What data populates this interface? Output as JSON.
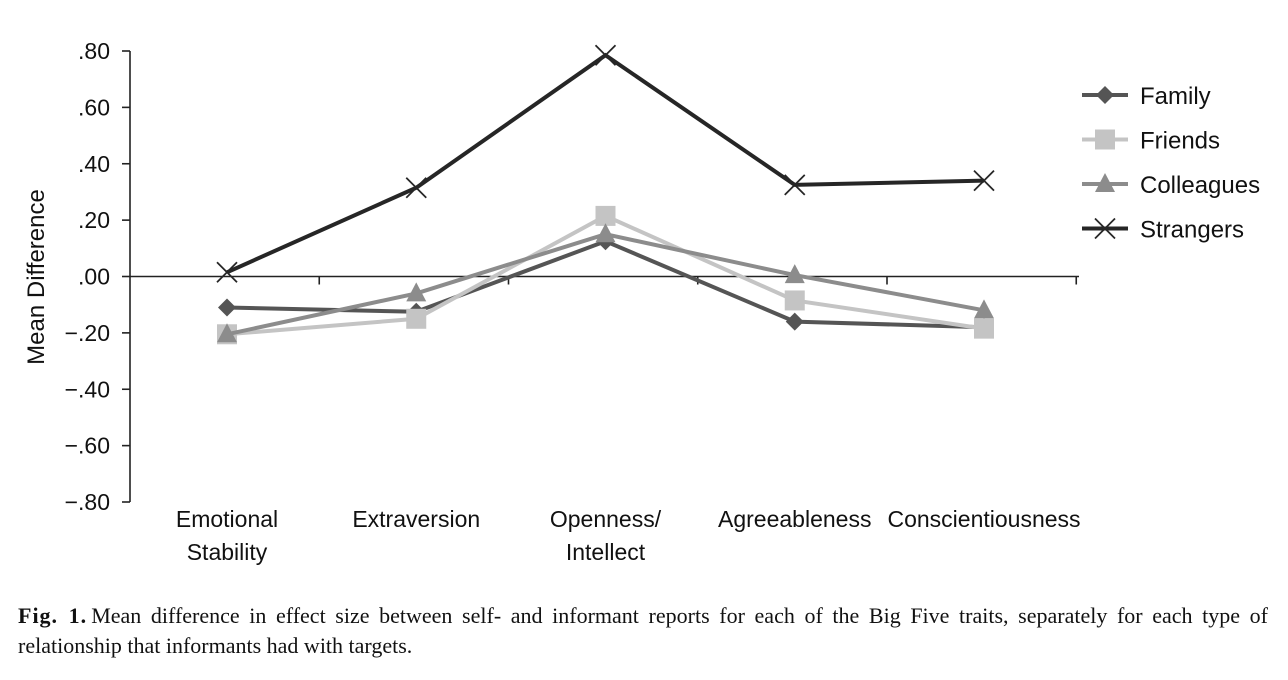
{
  "chart_data": {
    "type": "line",
    "ylabel": "Mean Difference",
    "ylim": [
      -0.8,
      0.8
    ],
    "yticks": [
      ".80",
      ".60",
      ".40",
      ".20",
      ".00",
      "−.20",
      "−.40",
      "−.60",
      "−.80"
    ],
    "yticks_values": [
      0.8,
      0.6,
      0.4,
      0.2,
      0.0,
      -0.2,
      -0.4,
      -0.6,
      -0.8
    ],
    "categories": [
      [
        "Emotional",
        "Stability"
      ],
      [
        "Extraversion"
      ],
      [
        "Openness/",
        "Intellect"
      ],
      [
        "Agreeableness"
      ],
      [
        "Conscientiousness"
      ]
    ],
    "legend_position": "right",
    "series": [
      {
        "name": "Family",
        "marker": "diamond",
        "color": "#555555",
        "values": [
          -0.11,
          -0.125,
          0.125,
          -0.16,
          -0.18
        ]
      },
      {
        "name": "Friends",
        "marker": "square",
        "color": "#c4c4c4",
        "values": [
          -0.205,
          -0.15,
          0.215,
          -0.085,
          -0.185
        ]
      },
      {
        "name": "Colleagues",
        "marker": "triangle",
        "color": "#8c8c8c",
        "values": [
          -0.205,
          -0.06,
          0.15,
          0.005,
          -0.12
        ]
      },
      {
        "name": "Strangers",
        "marker": "x",
        "color": "#262626",
        "values": [
          0.015,
          0.315,
          0.785,
          0.325,
          0.34
        ]
      }
    ]
  },
  "caption": {
    "label": "Fig. 1.",
    "text": "Mean difference in effect size between self- and informant reports for each of the Big Five traits, separately for each type of relationship that informants had with targets."
  }
}
